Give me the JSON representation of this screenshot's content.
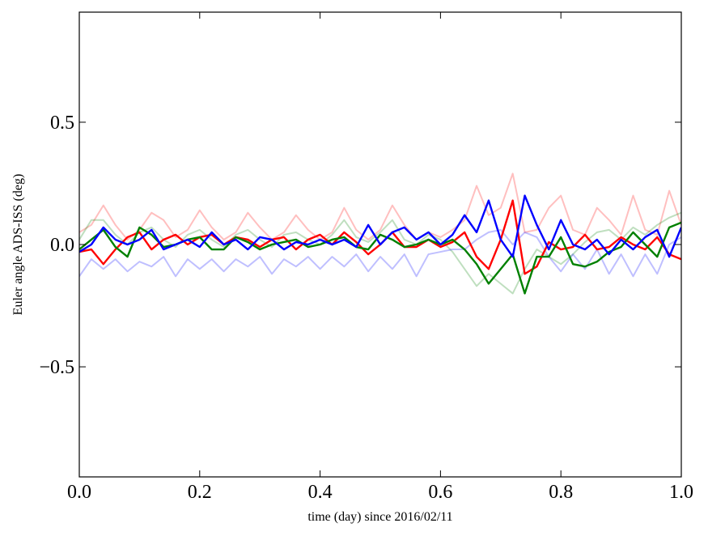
{
  "chart_data": {
    "type": "line",
    "xlabel": "time (day) since 2016/02/11",
    "ylabel": "Euler angle ADS-ISS (deg)",
    "xlim": [
      0.0,
      1.0
    ],
    "ylim": [
      -0.95,
      0.95
    ],
    "x_ticks": [
      0.0,
      0.2,
      0.4,
      0.6,
      0.8,
      1.0
    ],
    "x_tick_labels": [
      "0.0",
      "0.2",
      "0.4",
      "0.6",
      "0.8",
      "1.0"
    ],
    "y_ticks": [
      -0.5,
      0.0,
      0.5
    ],
    "y_tick_labels": [
      "−0.5",
      "0.0",
      "0.5"
    ],
    "grid": false,
    "x": [
      0.0,
      0.02,
      0.04,
      0.06,
      0.08,
      0.1,
      0.12,
      0.14,
      0.16,
      0.18,
      0.2,
      0.22,
      0.24,
      0.26,
      0.28,
      0.3,
      0.32,
      0.34,
      0.36,
      0.38,
      0.4,
      0.42,
      0.44,
      0.46,
      0.48,
      0.5,
      0.52,
      0.54,
      0.56,
      0.58,
      0.6,
      0.62,
      0.64,
      0.66,
      0.68,
      0.7,
      0.72,
      0.74,
      0.76,
      0.78,
      0.8,
      0.82,
      0.84,
      0.86,
      0.88,
      0.9,
      0.92,
      0.94,
      0.96,
      0.98,
      1.0
    ],
    "series": [
      {
        "color": "#ff0000",
        "opacity": 0.25,
        "width": 2,
        "values": [
          0.05,
          0.08,
          0.16,
          0.08,
          0.02,
          0.06,
          0.13,
          0.1,
          0.03,
          0.06,
          0.14,
          0.07,
          0.02,
          0.05,
          0.13,
          0.07,
          0.02,
          0.05,
          0.12,
          0.06,
          0.02,
          0.05,
          0.15,
          0.06,
          0.02,
          0.06,
          0.16,
          0.08,
          0.02,
          0.05,
          0.03,
          0.06,
          0.1,
          0.24,
          0.12,
          0.15,
          0.29,
          0.05,
          0.06,
          0.15,
          0.2,
          0.06,
          0.04,
          0.15,
          0.1,
          0.04,
          0.2,
          0.06,
          0.04,
          0.22,
          0.08
        ]
      },
      {
        "color": "#008000",
        "opacity": 0.25,
        "width": 2,
        "values": [
          0.02,
          0.1,
          0.1,
          0.04,
          0.0,
          0.05,
          0.07,
          0.02,
          -0.01,
          0.04,
          0.06,
          0.02,
          -0.01,
          0.04,
          0.06,
          0.02,
          -0.01,
          0.04,
          0.05,
          0.02,
          0.0,
          0.04,
          0.1,
          0.03,
          0.01,
          0.05,
          0.1,
          0.02,
          0.0,
          0.04,
          0.02,
          -0.03,
          -0.1,
          -0.17,
          -0.12,
          -0.16,
          -0.2,
          -0.1,
          -0.02,
          -0.05,
          -0.08,
          -0.04,
          0.01,
          0.05,
          0.06,
          0.02,
          0.07,
          0.04,
          0.08,
          0.11,
          0.13
        ]
      },
      {
        "color": "#0000ff",
        "opacity": 0.25,
        "width": 2,
        "values": [
          -0.13,
          -0.06,
          -0.1,
          -0.06,
          -0.11,
          -0.07,
          -0.09,
          -0.05,
          -0.13,
          -0.06,
          -0.1,
          -0.06,
          -0.11,
          -0.06,
          -0.09,
          -0.05,
          -0.12,
          -0.06,
          -0.09,
          -0.05,
          -0.1,
          -0.05,
          -0.09,
          -0.04,
          -0.11,
          -0.05,
          -0.1,
          -0.04,
          -0.13,
          -0.04,
          -0.03,
          -0.02,
          -0.02,
          0.02,
          0.05,
          0.06,
          0.0,
          0.05,
          0.03,
          -0.05,
          -0.11,
          -0.04,
          -0.1,
          -0.02,
          -0.12,
          -0.04,
          -0.13,
          -0.04,
          -0.12,
          0.0,
          0.03
        ]
      },
      {
        "color": "#ff0000",
        "opacity": 1,
        "width": 2.4,
        "values": [
          -0.03,
          -0.02,
          -0.08,
          -0.02,
          0.03,
          0.05,
          -0.02,
          0.02,
          0.04,
          0.0,
          0.03,
          0.04,
          0.0,
          0.03,
          0.02,
          -0.01,
          0.02,
          0.03,
          -0.02,
          0.02,
          0.04,
          0.0,
          0.05,
          0.01,
          -0.04,
          0.0,
          0.05,
          -0.01,
          -0.01,
          0.02,
          -0.01,
          0.01,
          0.05,
          -0.05,
          -0.1,
          0.02,
          0.18,
          -0.12,
          -0.09,
          0.01,
          -0.02,
          -0.01,
          0.04,
          -0.02,
          -0.01,
          0.03,
          0.0,
          -0.02,
          0.03,
          -0.04,
          -0.06
        ]
      },
      {
        "color": "#008000",
        "opacity": 1,
        "width": 2.4,
        "values": [
          -0.02,
          0.02,
          0.06,
          -0.01,
          -0.05,
          0.07,
          0.04,
          -0.01,
          0.0,
          0.02,
          0.03,
          -0.02,
          -0.02,
          0.03,
          0.01,
          -0.02,
          0.0,
          0.01,
          0.02,
          -0.01,
          0.0,
          0.02,
          0.03,
          -0.01,
          -0.02,
          0.04,
          0.02,
          -0.01,
          0.0,
          0.02,
          0.0,
          0.02,
          -0.02,
          -0.08,
          -0.16,
          -0.1,
          -0.04,
          -0.2,
          -0.05,
          -0.05,
          0.03,
          -0.08,
          -0.09,
          -0.07,
          -0.03,
          -0.01,
          0.05,
          0.0,
          -0.05,
          0.07,
          0.09
        ]
      },
      {
        "color": "#0000ff",
        "opacity": 1,
        "width": 2.4,
        "values": [
          -0.03,
          0.0,
          0.07,
          0.02,
          0.0,
          0.02,
          0.06,
          -0.02,
          0.0,
          0.02,
          -0.01,
          0.05,
          0.0,
          0.02,
          -0.02,
          0.03,
          0.02,
          -0.02,
          0.01,
          0.0,
          0.02,
          0.0,
          0.02,
          -0.01,
          0.08,
          0.0,
          0.05,
          0.07,
          0.02,
          0.05,
          0.0,
          0.04,
          0.12,
          0.05,
          0.18,
          0.02,
          -0.05,
          0.2,
          0.08,
          -0.02,
          0.1,
          0.0,
          -0.02,
          0.02,
          -0.04,
          0.02,
          -0.02,
          0.03,
          0.06,
          -0.05,
          0.07
        ]
      }
    ]
  }
}
